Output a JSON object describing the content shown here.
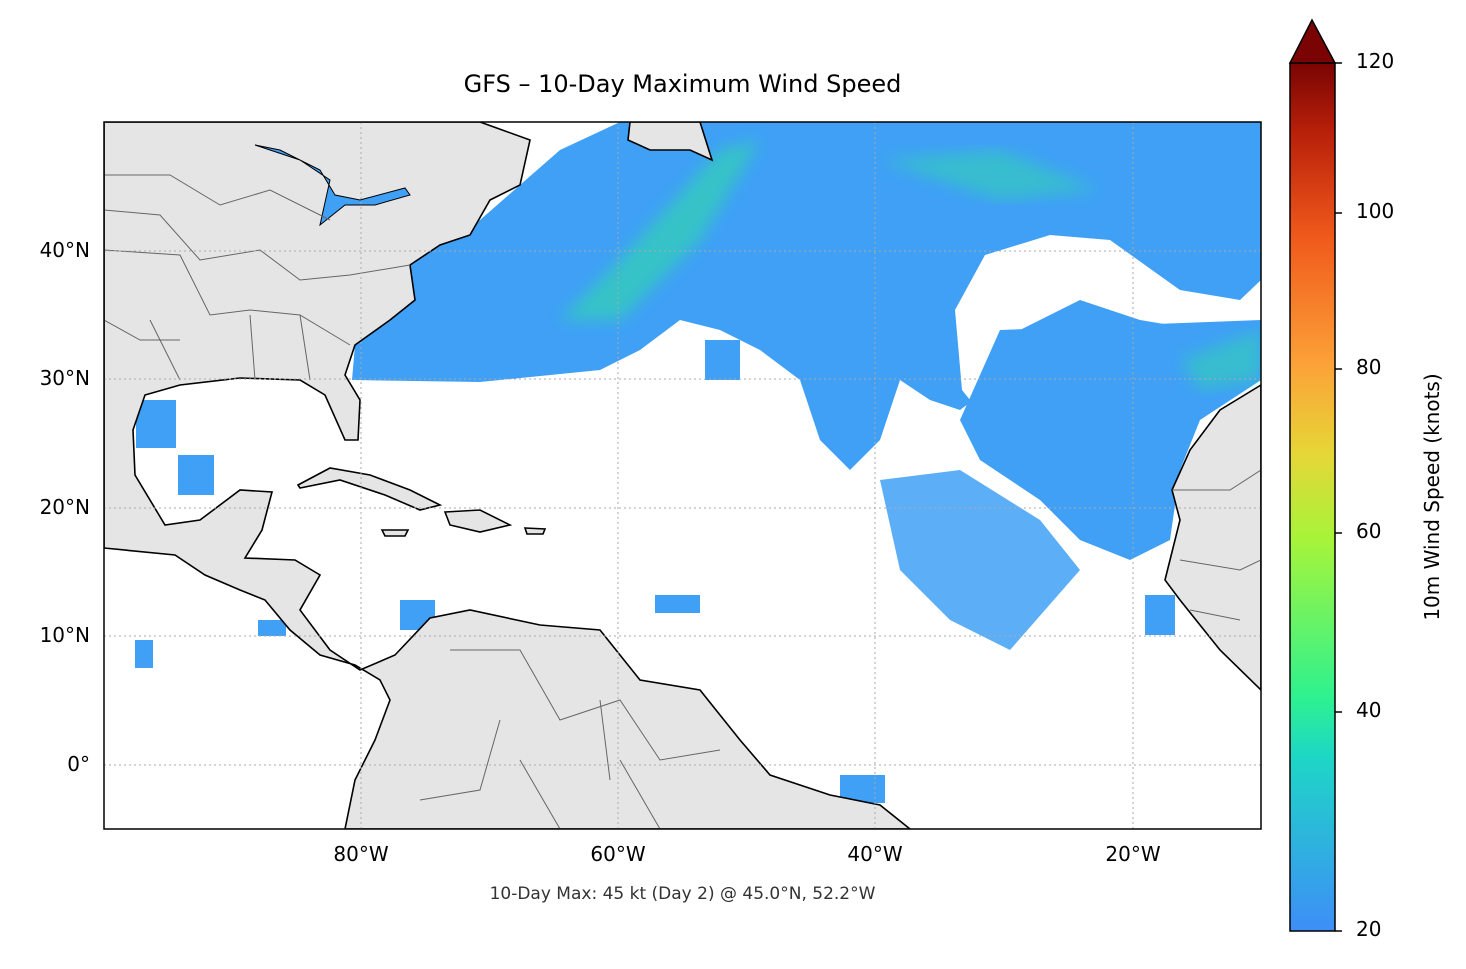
{
  "title": "GFS – 10-Day Maximum Wind Speed",
  "footer": "10-Day Max: 45 kt (Day 2) @ 45.0°N, 52.2°W",
  "map": {
    "extent": {
      "lon": [
        -100,
        -10
      ],
      "lat": [
        -5,
        50
      ]
    },
    "x_ticks": [
      "80°W",
      "60°W",
      "40°W",
      "20°W"
    ],
    "y_ticks": [
      "0°",
      "10°N",
      "20°N",
      "30°N",
      "40°N"
    ],
    "gridlines": "dotted",
    "land_color": "#e5e5e5",
    "coastline_color": "#000000",
    "borders_color": "#666666",
    "max_marker": {
      "value_kt": 45,
      "day": 2,
      "lat": 45.0,
      "lon": -52.2
    }
  },
  "colorbar": {
    "label": "10m Wind Speed (knots)",
    "ticks": [
      "20",
      "40",
      "60",
      "80",
      "100",
      "120"
    ],
    "range": [
      20,
      120
    ],
    "extend": "max",
    "colormap": "turbo",
    "colors": [
      "#3e8ef7",
      "#1ed6c6",
      "#2ef28f",
      "#a6f43a",
      "#e6d637",
      "#fca338",
      "#f0591b",
      "#b8200a",
      "#7a0403"
    ]
  }
}
